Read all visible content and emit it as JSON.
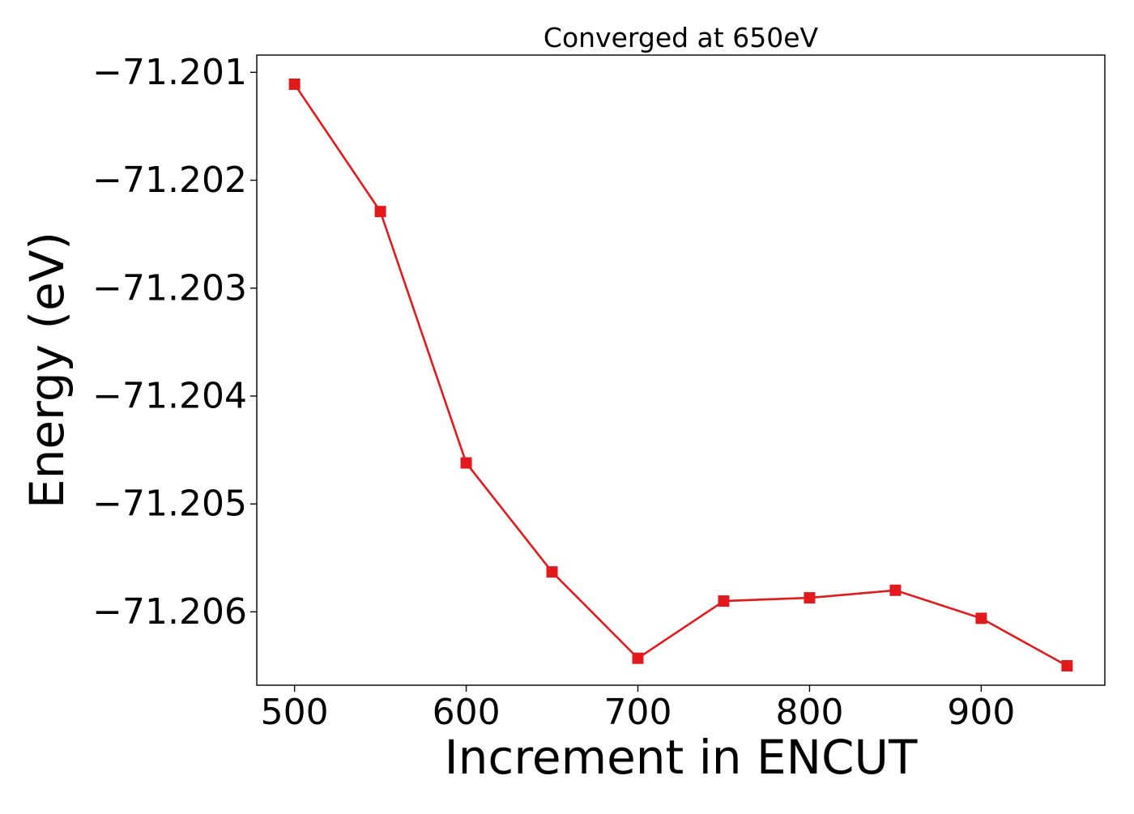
{
  "chart_data": {
    "type": "line",
    "title": "Converged at 650eV",
    "xlabel": "Increment in ENCUT",
    "ylabel": "Energy (eV)",
    "x": [
      500,
      550,
      600,
      650,
      700,
      750,
      800,
      850,
      900,
      950
    ],
    "series": [
      {
        "values": [
          -71.20111,
          -71.20229,
          -71.20462,
          -71.20563,
          -71.20643,
          -71.2059,
          -71.20587,
          -71.2058,
          -71.20606,
          -71.2065
        ],
        "color": "#e31a1c",
        "marker": "square"
      }
    ],
    "xlim": [
      478,
      972
    ],
    "ylim": [
      -71.20668,
      -71.20084
    ],
    "xticks": [
      500,
      600,
      700,
      800,
      900
    ],
    "xtick_labels": [
      "500",
      "600",
      "700",
      "800",
      "900"
    ],
    "yticks": [
      -71.201,
      -71.202,
      -71.203,
      -71.204,
      -71.205,
      -71.206
    ],
    "ytick_labels": [
      "−71.201",
      "−71.202",
      "−71.203",
      "−71.204",
      "−71.205",
      "−71.206"
    ],
    "grid": false,
    "legend": "none"
  }
}
